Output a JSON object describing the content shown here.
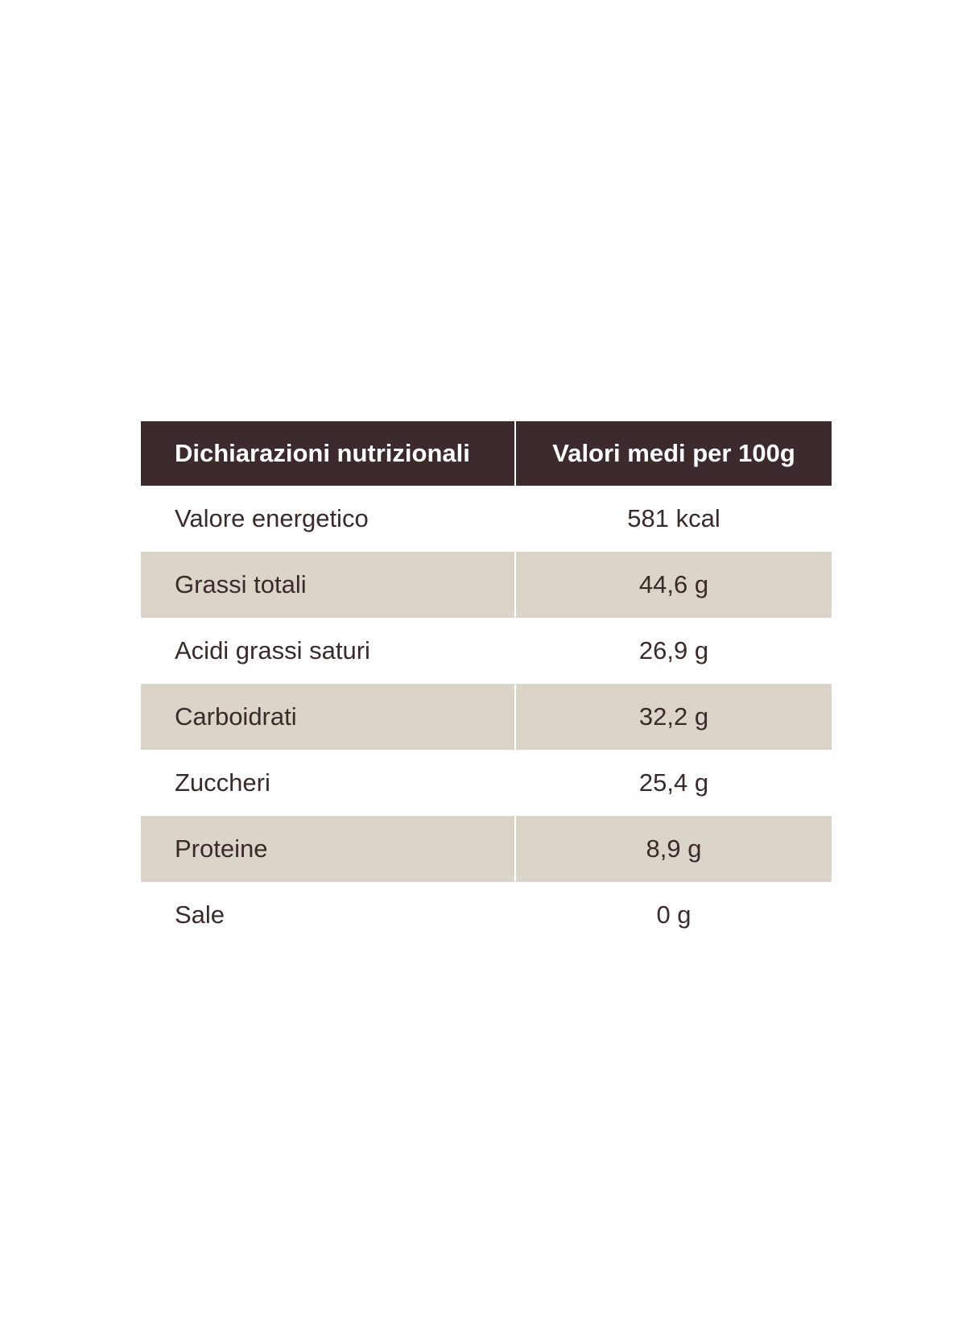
{
  "table": {
    "header": {
      "name": "Dichiarazioni nutrizionali",
      "value": "Valori medi per 100g"
    },
    "rows": [
      {
        "name": "Valore energetico",
        "value": "581 kcal"
      },
      {
        "name": "Grassi totali",
        "value": "44,6 g"
      },
      {
        "name": "Acidi grassi saturi",
        "value": "26,9 g"
      },
      {
        "name": "Carboidrati",
        "value": "32,2 g"
      },
      {
        "name": "Zuccheri",
        "value": "25,4 g"
      },
      {
        "name": "Proteine",
        "value": "8,9 g"
      },
      {
        "name": "Sale",
        "value": "0 g"
      }
    ]
  },
  "colors": {
    "header_background": "#3d2a2c",
    "header_text": "#ffffff",
    "shaded_row": "#dbd5c9",
    "body_text": "#3a2a2a"
  }
}
